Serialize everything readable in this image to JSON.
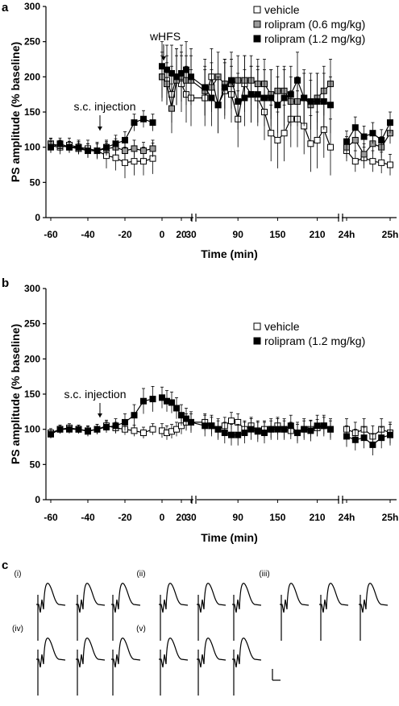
{
  "figure": {
    "panel_labels": [
      "a",
      "b",
      "c"
    ]
  },
  "chart_data": [
    {
      "panel": "a",
      "type": "line",
      "xlabel": "Time (min)",
      "ylabel": "PS amplitude (% baseline)",
      "ylim": [
        0,
        300
      ],
      "yticks": [
        "0",
        "50",
        "100",
        "150",
        "200",
        "250",
        "300"
      ],
      "xtick_labels": [
        "-60",
        "-40",
        "-20",
        "0",
        "20",
        "30",
        "90",
        "150",
        "210",
        "24h",
        "25h"
      ],
      "axis_breaks": true,
      "grid": false,
      "legend_position": "top-right",
      "annotations": [
        {
          "text": "s.c. injection",
          "x": -32
        },
        {
          "text": "wHFS",
          "x": 0
        }
      ],
      "series": [
        {
          "name": "vehicle",
          "marker": "open-square",
          "color": "#ffffff",
          "pre": {
            "x": [
              -60,
              -55,
              -50,
              -45,
              -40,
              -35,
              -30,
              -25,
              -20,
              -15,
              -10,
              -5
            ],
            "y": [
              102,
              100,
              103,
              100,
              98,
              95,
              88,
              85,
              78,
              80,
              80,
              84
            ],
            "err": [
              10,
              10,
              10,
              10,
              12,
              12,
              18,
              18,
              22,
              20,
              20,
              22
            ]
          },
          "post": {
            "x": [
              0,
              5,
              10,
              15,
              20,
              25,
              30,
              40,
              50,
              60,
              70,
              80,
              90,
              100,
              110,
              120,
              130,
              140,
              150,
              160,
              170,
              180,
              190,
              200,
              210,
              220,
              230
            ],
            "y": [
              200,
              195,
              175,
              200,
              190,
              175,
              170,
              170,
              200,
              160,
              180,
              175,
              140,
              190,
              175,
              170,
              150,
              120,
              110,
              120,
              140,
              140,
              130,
              105,
              110,
              125,
              100
            ],
            "err": [
              35,
              35,
              40,
              40,
              40,
              40,
              40,
              40,
              40,
              40,
              40,
              40,
              40,
              40,
              40,
              40,
              40,
              40,
              40,
              40,
              40,
              40,
              40,
              40,
              40,
              40,
              40
            ]
          },
          "day": {
            "x": [
              0,
              1,
              2,
              3,
              4,
              5
            ],
            "y": [
              95,
              80,
              85,
              80,
              78,
              75
            ],
            "err": [
              15,
              15,
              15,
              15,
              15,
              15
            ]
          }
        },
        {
          "name": "rolipram (0.6 mg/kg)",
          "marker": "grey-square",
          "color": "#9a9a9a",
          "pre": {
            "x": [
              -60,
              -55,
              -50,
              -45,
              -40,
              -35,
              -30,
              -25,
              -20,
              -15,
              -10,
              -5
            ],
            "y": [
              105,
              102,
              100,
              98,
              95,
              95,
              98,
              100,
              95,
              98,
              95,
              98
            ],
            "err": [
              8,
              8,
              8,
              8,
              10,
              10,
              10,
              12,
              12,
              12,
              12,
              12
            ]
          },
          "post": {
            "x": [
              0,
              5,
              10,
              15,
              20,
              25,
              30,
              40,
              50,
              60,
              70,
              80,
              90,
              100,
              110,
              120,
              130,
              140,
              150,
              160,
              170,
              180,
              190,
              200,
              210,
              220,
              230
            ],
            "y": [
              200,
              190,
              155,
              195,
              200,
              195,
              195,
              180,
              185,
              200,
              190,
              190,
              195,
              195,
              195,
              190,
              190,
              175,
              180,
              180,
              165,
              165,
              170,
              160,
              170,
              180,
              190
            ],
            "err": [
              30,
              30,
              35,
              35,
              35,
              35,
              35,
              35,
              35,
              35,
              35,
              35,
              35,
              35,
              35,
              35,
              35,
              35,
              35,
              35,
              35,
              35,
              35,
              35,
              35,
              35,
              35
            ]
          },
          "day": {
            "x": [
              0,
              1,
              2,
              3,
              4,
              5
            ],
            "y": [
              100,
              110,
              90,
              105,
              100,
              120
            ],
            "err": [
              15,
              15,
              15,
              15,
              15,
              15
            ]
          }
        },
        {
          "name": "rolipram (1.2 mg/kg)",
          "marker": "filled-square",
          "color": "#000000",
          "pre": {
            "x": [
              -60,
              -55,
              -50,
              -45,
              -40,
              -35,
              -30,
              -25,
              -20,
              -15,
              -10,
              -5
            ],
            "y": [
              100,
              105,
              100,
              100,
              95,
              95,
              100,
              105,
              110,
              135,
              140,
              135
            ],
            "err": [
              8,
              8,
              8,
              8,
              10,
              10,
              10,
              12,
              12,
              12,
              12,
              12
            ]
          },
          "post": {
            "x": [
              0,
              5,
              10,
              15,
              20,
              25,
              30,
              40,
              50,
              60,
              70,
              80,
              90,
              100,
              110,
              120,
              130,
              140,
              150,
              160,
              170,
              180,
              190,
              200,
              210,
              220,
              230
            ],
            "y": [
              215,
              210,
              205,
              200,
              205,
              210,
              200,
              185,
              170,
              160,
              185,
              195,
              165,
              170,
              175,
              175,
              170,
              170,
              160,
              170,
              175,
              195,
              170,
              165,
              165,
              165,
              160
            ],
            "err": [
              35,
              35,
              40,
              40,
              40,
              40,
              40,
              40,
              40,
              40,
              40,
              40,
              40,
              40,
              40,
              40,
              40,
              40,
              40,
              40,
              40,
              40,
              40,
              40,
              40,
              40,
              40
            ]
          },
          "day": {
            "x": [
              0,
              1,
              2,
              3,
              4,
              5
            ],
            "y": [
              108,
              128,
              115,
              120,
              110,
              135
            ],
            "err": [
              15,
              15,
              15,
              15,
              15,
              15
            ]
          }
        }
      ]
    },
    {
      "panel": "b",
      "type": "line",
      "xlabel": "Time (min)",
      "ylabel": "PS amplitude (% baseline)",
      "ylim": [
        0,
        300
      ],
      "yticks": [
        "0",
        "50",
        "100",
        "150",
        "200",
        "250",
        "300"
      ],
      "xtick_labels": [
        "-60",
        "-40",
        "-20",
        "0",
        "20",
        "30",
        "90",
        "150",
        "210",
        "24h",
        "25h"
      ],
      "axis_breaks": true,
      "grid": false,
      "legend_position": "top-right",
      "annotations": [
        {
          "text": "s.c. injection",
          "x": -32
        }
      ],
      "series": [
        {
          "name": "vehicle",
          "marker": "open-square",
          "color": "#ffffff",
          "pre": {
            "x": [
              -60,
              -55,
              -50,
              -45,
              -40,
              -35,
              -30,
              -25,
              -20,
              -15,
              -10,
              -5
            ],
            "y": [
              95,
              100,
              102,
              100,
              98,
              100,
              105,
              102,
              100,
              98,
              95,
              100
            ],
            "err": [
              6,
              6,
              6,
              6,
              7,
              7,
              8,
              8,
              8,
              8,
              8,
              8
            ]
          },
          "post": {
            "x": [
              0,
              5,
              10,
              15,
              20,
              25,
              30,
              40,
              50,
              60,
              70,
              80,
              90,
              100,
              110,
              120,
              130,
              140,
              150,
              160,
              170,
              180,
              190,
              200,
              210,
              220,
              230
            ],
            "y": [
              98,
              95,
              97,
              100,
              105,
              110,
              110,
              110,
              105,
              100,
              105,
              112,
              110,
              100,
              105,
              98,
              100,
              100,
              105,
              100,
              98,
              95,
              100,
              100,
              102,
              105,
              100
            ],
            "err": [
              10,
              10,
              10,
              10,
              12,
              12,
              12,
              12,
              12,
              12,
              12,
              12,
              12,
              12,
              12,
              12,
              12,
              12,
              12,
              12,
              12,
              12,
              12,
              12,
              12,
              12,
              12
            ]
          },
          "day": {
            "x": [
              0,
              1,
              2,
              3,
              4,
              5
            ],
            "y": [
              100,
              95,
              100,
              90,
              100,
              95
            ],
            "err": [
              15,
              15,
              15,
              15,
              15,
              15
            ]
          }
        },
        {
          "name": "rolipram (1.2 mg/kg)",
          "marker": "filled-square",
          "color": "#000000",
          "pre": {
            "x": [
              -60,
              -55,
              -50,
              -45,
              -40,
              -35,
              -30,
              -25,
              -20,
              -15,
              -10,
              -5
            ],
            "y": [
              93,
              100,
              100,
              100,
              97,
              100,
              103,
              105,
              110,
              120,
              140,
              143
            ],
            "err": [
              6,
              6,
              6,
              6,
              7,
              7,
              8,
              10,
              12,
              15,
              18,
              18
            ]
          },
          "post": {
            "x": [
              0,
              5,
              10,
              15,
              20,
              25,
              30,
              40,
              50,
              60,
              70,
              80,
              90,
              100,
              110,
              120,
              130,
              140,
              150,
              160,
              170,
              180,
              190,
              200,
              210,
              220,
              230
            ],
            "y": [
              145,
              140,
              138,
              130,
              120,
              115,
              110,
              105,
              105,
              100,
              95,
              92,
              92,
              95,
              100,
              97,
              95,
              100,
              100,
              100,
              105,
              95,
              100,
              98,
              105,
              105,
              100
            ],
            "err": [
              15,
              15,
              15,
              15,
              15,
              15,
              15,
              15,
              15,
              15,
              15,
              15,
              15,
              15,
              15,
              15,
              15,
              15,
              15,
              15,
              15,
              15,
              15,
              15,
              15,
              15,
              15
            ]
          },
          "day": {
            "x": [
              0,
              1,
              2,
              3,
              4,
              5
            ],
            "y": [
              90,
              85,
              88,
              78,
              88,
              92
            ],
            "err": [
              15,
              15,
              15,
              15,
              15,
              15
            ]
          }
        }
      ]
    }
  ],
  "traces": {
    "group_labels": [
      "(i)",
      "(ii)",
      "(iii)",
      "(iv)",
      "(v)"
    ]
  }
}
